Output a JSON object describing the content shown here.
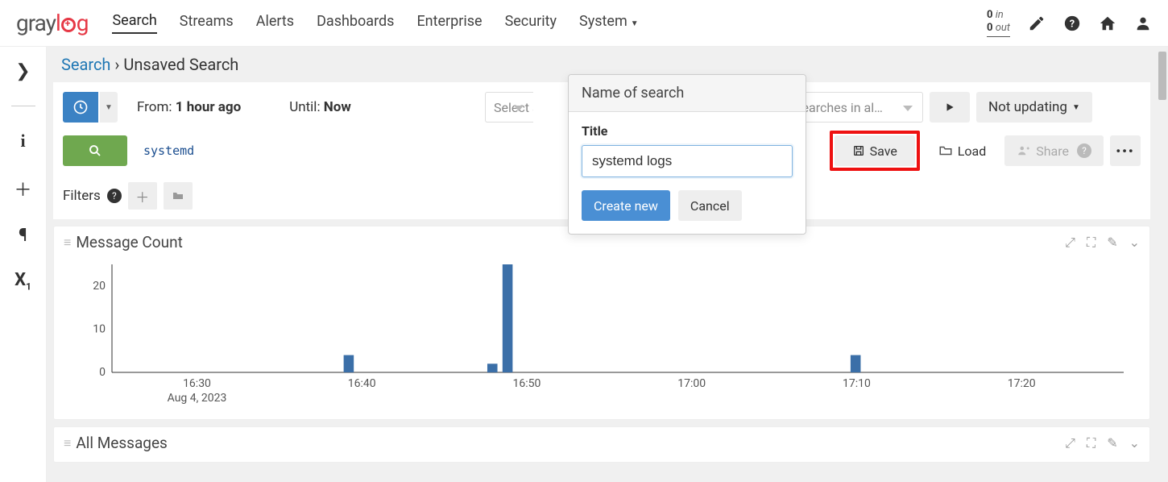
{
  "logo": {
    "part1": "gray",
    "part2": "l",
    "part3": "g"
  },
  "nav": {
    "items": [
      "Search",
      "Streams",
      "Alerts",
      "Dashboards",
      "Enterprise",
      "Security",
      "System"
    ],
    "active_index": 0,
    "system_has_caret": true
  },
  "throughput": {
    "in_count": "0",
    "in_label": "in",
    "out_count": "0",
    "out_label": "out"
  },
  "breadcrumb": {
    "link": "Search",
    "sep": "›",
    "current": "Unsaved Search"
  },
  "timerange": {
    "from_label": "From:",
    "from_value": "1 hour ago",
    "until_label": "Until:",
    "until_value": "Now"
  },
  "streams_placeholder": "Select streams",
  "saved_searches_placeholder": "Searches in al…",
  "updating_label": "Not updating",
  "query": "systemd",
  "save_label": "Save",
  "load_label": "Load",
  "share_label": "Share",
  "filters_label": "Filters",
  "popover": {
    "header": "Name of search",
    "title_label": "Title",
    "title_value": "systemd logs",
    "create_label": "Create new",
    "cancel_label": "Cancel"
  },
  "panel_msg_count": {
    "title": "Message Count",
    "date_label": "Aug 4, 2023",
    "chart": {
      "type": "bar",
      "ylim": [
        0,
        25
      ],
      "yticks": [
        0,
        10,
        20
      ],
      "xticks": [
        "16:30",
        "16:40",
        "16:50",
        "17:00",
        "17:10",
        "17:20"
      ],
      "xtick_positions": [
        0.084,
        0.247,
        0.41,
        0.573,
        0.736,
        0.899
      ],
      "bars": [
        {
          "x": 0.234,
          "h": 4
        },
        {
          "x": 0.376,
          "h": 2
        },
        {
          "x": 0.391,
          "h": 25
        },
        {
          "x": 0.735,
          "h": 4
        }
      ],
      "bar_color": "#3b6fa8",
      "bar_width": 0.01,
      "axis_color": "#333333"
    }
  },
  "panel_all_messages": {
    "title": "All Messages"
  }
}
